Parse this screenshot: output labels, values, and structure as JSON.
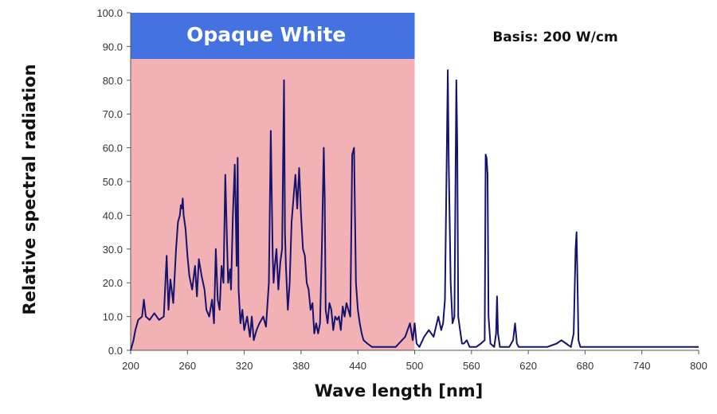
{
  "chart_data": {
    "type": "line",
    "title": "",
    "xlabel": "Wave length [nm]",
    "ylabel": "Relative spectral radiation",
    "xlim": [
      200,
      800
    ],
    "ylim": [
      0,
      100
    ],
    "x_ticks": [
      200,
      260,
      320,
      380,
      440,
      500,
      560,
      620,
      680,
      740,
      800
    ],
    "x_tick_labels": [
      "200",
      "260",
      "320",
      "380",
      "440",
      "500",
      "560",
      "620",
      "680",
      "740",
      "800"
    ],
    "y_ticks": [
      0,
      10,
      20,
      30,
      40,
      50,
      60,
      70,
      80,
      90,
      100
    ],
    "y_tick_labels": [
      "0.0",
      "10.0",
      "20.0",
      "30.0",
      "40.0",
      "50.0",
      "60.0",
      "70.0",
      "80.0",
      "90.0",
      "100.0"
    ],
    "grid": false,
    "legend": "none",
    "annotations": [
      {
        "text": "Opaque White",
        "type": "banner"
      },
      {
        "text": "Basis: 200 W/cm",
        "type": "label"
      }
    ],
    "shaded_region": {
      "x_from": 200,
      "x_to": 500,
      "label": "Opaque White"
    },
    "colors": {
      "line": "#14146e",
      "region": "#f2b1b5",
      "banner": "#4472e0",
      "banner_text": "#ffffff"
    },
    "series": [
      {
        "x": [
          200,
          203,
          205,
          208,
          212,
          214,
          216,
          220,
          225,
          230,
          235,
          238,
          240,
          242,
          245,
          248,
          250,
          252,
          253,
          254,
          255,
          256,
          258,
          260,
          262,
          265,
          268,
          270,
          272,
          275,
          278,
          280,
          283,
          286,
          288,
          290,
          292,
          294,
          296,
          298,
          300,
          302,
          303,
          305,
          306,
          308,
          310,
          312,
          313,
          314,
          316,
          318,
          320,
          323,
          326,
          328,
          330,
          333,
          336,
          340,
          343,
          346,
          348,
          350,
          351,
          352,
          354,
          356,
          358,
          360,
          362,
          363,
          364,
          366,
          368,
          370,
          372,
          374,
          376,
          378,
          380,
          382,
          384,
          386,
          388,
          390,
          392,
          394,
          396,
          398,
          400,
          402,
          404,
          405,
          406,
          408,
          410,
          412,
          414,
          416,
          418,
          420,
          422,
          424,
          426,
          428,
          430,
          432,
          434,
          436,
          437,
          438,
          440,
          442,
          444,
          446,
          450,
          455,
          460,
          470,
          480,
          490,
          495,
          498,
          500,
          502,
          505,
          510,
          515,
          520,
          525,
          528,
          530,
          532,
          534,
          535,
          536,
          538,
          540,
          542,
          543,
          544,
          545,
          546,
          548,
          550,
          552,
          555,
          558,
          560,
          565,
          570,
          574,
          575,
          576,
          577,
          578,
          580,
          584,
          586,
          587,
          588,
          590,
          595,
          600,
          604,
          606,
          607,
          608,
          610,
          615,
          620,
          630,
          640,
          650,
          655,
          660,
          665,
          668,
          670,
          671,
          672,
          673,
          675,
          680,
          690,
          700,
          710,
          720,
          740,
          760,
          780,
          800
        ],
        "y": [
          0,
          3,
          6,
          9,
          10,
          15,
          10,
          9,
          11,
          9,
          10,
          28,
          12,
          21,
          14,
          30,
          38,
          40,
          43,
          42,
          45,
          40,
          36,
          28,
          22,
          18,
          25,
          16,
          27,
          22,
          18,
          12,
          10,
          15,
          8,
          30,
          15,
          12,
          25,
          20,
          52,
          30,
          20,
          24,
          18,
          40,
          55,
          25,
          57,
          18,
          8,
          12,
          6,
          10,
          4,
          10,
          3,
          6,
          8,
          10,
          7,
          20,
          65,
          28,
          20,
          24,
          30,
          18,
          26,
          30,
          80,
          35,
          25,
          12,
          20,
          38,
          45,
          52,
          42,
          54,
          40,
          30,
          28,
          20,
          18,
          12,
          14,
          5,
          8,
          5,
          8,
          30,
          60,
          45,
          12,
          8,
          14,
          12,
          6,
          10,
          9,
          10,
          6,
          13,
          10,
          14,
          12,
          10,
          58,
          60,
          40,
          20,
          12,
          8,
          5,
          3,
          2,
          1,
          1,
          1,
          1,
          4,
          8,
          3,
          8,
          2,
          1,
          4,
          6,
          4,
          10,
          6,
          8,
          15,
          60,
          83,
          55,
          20,
          8,
          10,
          45,
          80,
          60,
          10,
          6,
          2,
          2,
          3,
          1,
          1,
          1,
          2,
          3,
          58,
          57,
          52,
          10,
          2,
          1,
          5,
          16,
          5,
          1,
          1,
          1,
          3,
          8,
          5,
          2,
          1,
          1,
          1,
          1,
          1,
          2,
          3,
          2,
          1,
          5,
          30,
          35,
          20,
          3,
          1,
          1,
          1,
          1,
          1,
          1,
          1,
          1,
          1,
          1
        ]
      }
    ]
  }
}
